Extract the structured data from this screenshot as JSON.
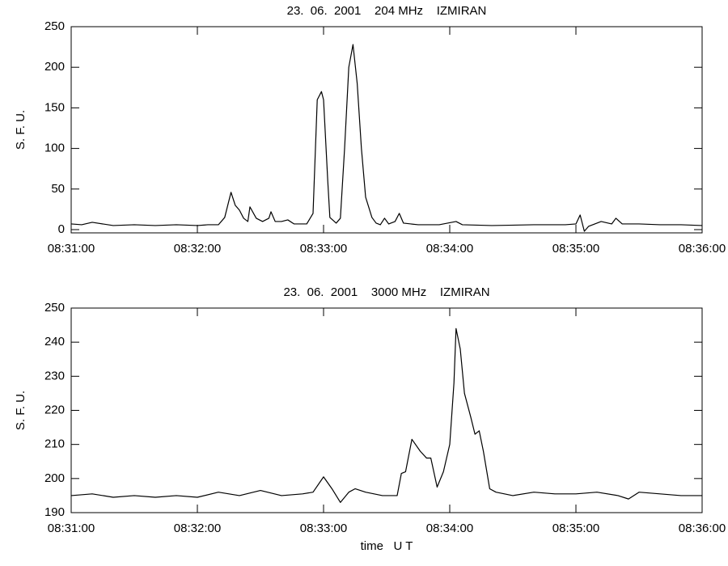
{
  "chart_data": [
    {
      "type": "line",
      "title": "23.  06.  2001    204 MHz    IZMIRAN",
      "ylabel": "S. F. U.",
      "xlim": [
        "08:31:00",
        "08:36:00"
      ],
      "xticks": [
        "08:31:00",
        "08:32:00",
        "08:33:00",
        "08:34:00",
        "08:35:00",
        "08:36:00"
      ],
      "ylim": [
        -4,
        250
      ],
      "yticks": [
        0,
        50,
        100,
        150,
        200,
        250
      ],
      "x": [
        "08:31:00",
        "08:31:05",
        "08:31:10",
        "08:31:20",
        "08:31:30",
        "08:31:40",
        "08:31:50",
        "08:32:00",
        "08:32:05",
        "08:32:10",
        "08:32:13",
        "08:32:16",
        "08:32:18",
        "08:32:20",
        "08:32:22",
        "08:32:24",
        "08:32:25",
        "08:32:28",
        "08:32:31",
        "08:32:34",
        "08:32:35",
        "08:32:37",
        "08:32:40",
        "08:32:43",
        "08:32:46",
        "08:32:52",
        "08:32:55",
        "08:32:57",
        "08:32:59",
        "08:33:00",
        "08:33:02",
        "08:33:03",
        "08:33:06",
        "08:33:08",
        "08:33:10",
        "08:33:12",
        "08:33:14",
        "08:33:16",
        "08:33:18",
        "08:33:20",
        "08:33:23",
        "08:33:25",
        "08:33:27",
        "08:33:29",
        "08:33:31",
        "08:33:34",
        "08:33:36",
        "08:33:38",
        "08:33:45",
        "08:33:55",
        "08:34:03",
        "08:34:06",
        "08:34:20",
        "08:34:40",
        "08:34:55",
        "08:35:00",
        "08:35:02",
        "08:35:04",
        "08:35:06",
        "08:35:10",
        "08:35:12",
        "08:35:17",
        "08:35:19",
        "08:35:22",
        "08:35:30",
        "08:35:40",
        "08:35:50",
        "08:36:00"
      ],
      "series": [
        {
          "color": "#000000",
          "values": [
            7,
            6,
            9,
            5,
            6,
            5,
            6,
            5,
            6,
            6,
            15,
            46,
            30,
            24,
            14,
            10,
            28,
            14,
            10,
            14,
            22,
            10,
            10,
            12,
            7,
            7,
            20,
            160,
            170,
            160,
            60,
            15,
            8,
            14,
            100,
            200,
            228,
            180,
            100,
            40,
            15,
            8,
            6,
            14,
            7,
            10,
            20,
            8,
            6,
            6,
            10,
            6,
            5,
            6,
            6,
            7,
            18,
            -2,
            4,
            8,
            10,
            7,
            14,
            7,
            7,
            6,
            6,
            5
          ]
        }
      ]
    },
    {
      "type": "line",
      "title": "23.  06.  2001    3000 MHz    IZMIRAN",
      "ylabel": "S. F. U.",
      "xlabel": "time   U T",
      "xlim": [
        "08:31:00",
        "08:36:00"
      ],
      "xticks": [
        "08:31:00",
        "08:32:00",
        "08:33:00",
        "08:34:00",
        "08:35:00",
        "08:36:00"
      ],
      "ylim": [
        190,
        250
      ],
      "yticks": [
        190,
        200,
        210,
        220,
        230,
        240,
        250
      ],
      "x": [
        "08:31:00",
        "08:31:10",
        "08:31:20",
        "08:31:30",
        "08:31:40",
        "08:31:50",
        "08:32:00",
        "08:32:10",
        "08:32:20",
        "08:32:30",
        "08:32:40",
        "08:32:50",
        "08:32:55",
        "08:33:00",
        "08:33:04",
        "08:33:08",
        "08:33:12",
        "08:33:15",
        "08:33:20",
        "08:33:28",
        "08:33:35",
        "08:33:37",
        "08:33:39",
        "08:33:42",
        "08:33:46",
        "08:33:49",
        "08:33:51",
        "08:33:54",
        "08:33:57",
        "08:34:00",
        "08:34:02",
        "08:34:03",
        "08:34:05",
        "08:34:07",
        "08:34:10",
        "08:34:12",
        "08:34:14",
        "08:34:16",
        "08:34:19",
        "08:34:22",
        "08:34:30",
        "08:34:40",
        "08:34:50",
        "08:35:00",
        "08:35:10",
        "08:35:20",
        "08:35:25",
        "08:35:30",
        "08:35:40",
        "08:35:50",
        "08:36:00"
      ],
      "series": [
        {
          "color": "#000000",
          "values": [
            195,
            195.5,
            194.5,
            195,
            194.5,
            195,
            194.5,
            196,
            195,
            196.5,
            195,
            195.5,
            196,
            200.5,
            197,
            193,
            196,
            197,
            196,
            195,
            195,
            201.5,
            202,
            211.5,
            208,
            206,
            206,
            197.5,
            202,
            210,
            228,
            244,
            238,
            225,
            218,
            213,
            214,
            208,
            197,
            196,
            195,
            196,
            195.5,
            195.5,
            196,
            195,
            194,
            196,
            195.5,
            195,
            195
          ]
        }
      ]
    }
  ]
}
